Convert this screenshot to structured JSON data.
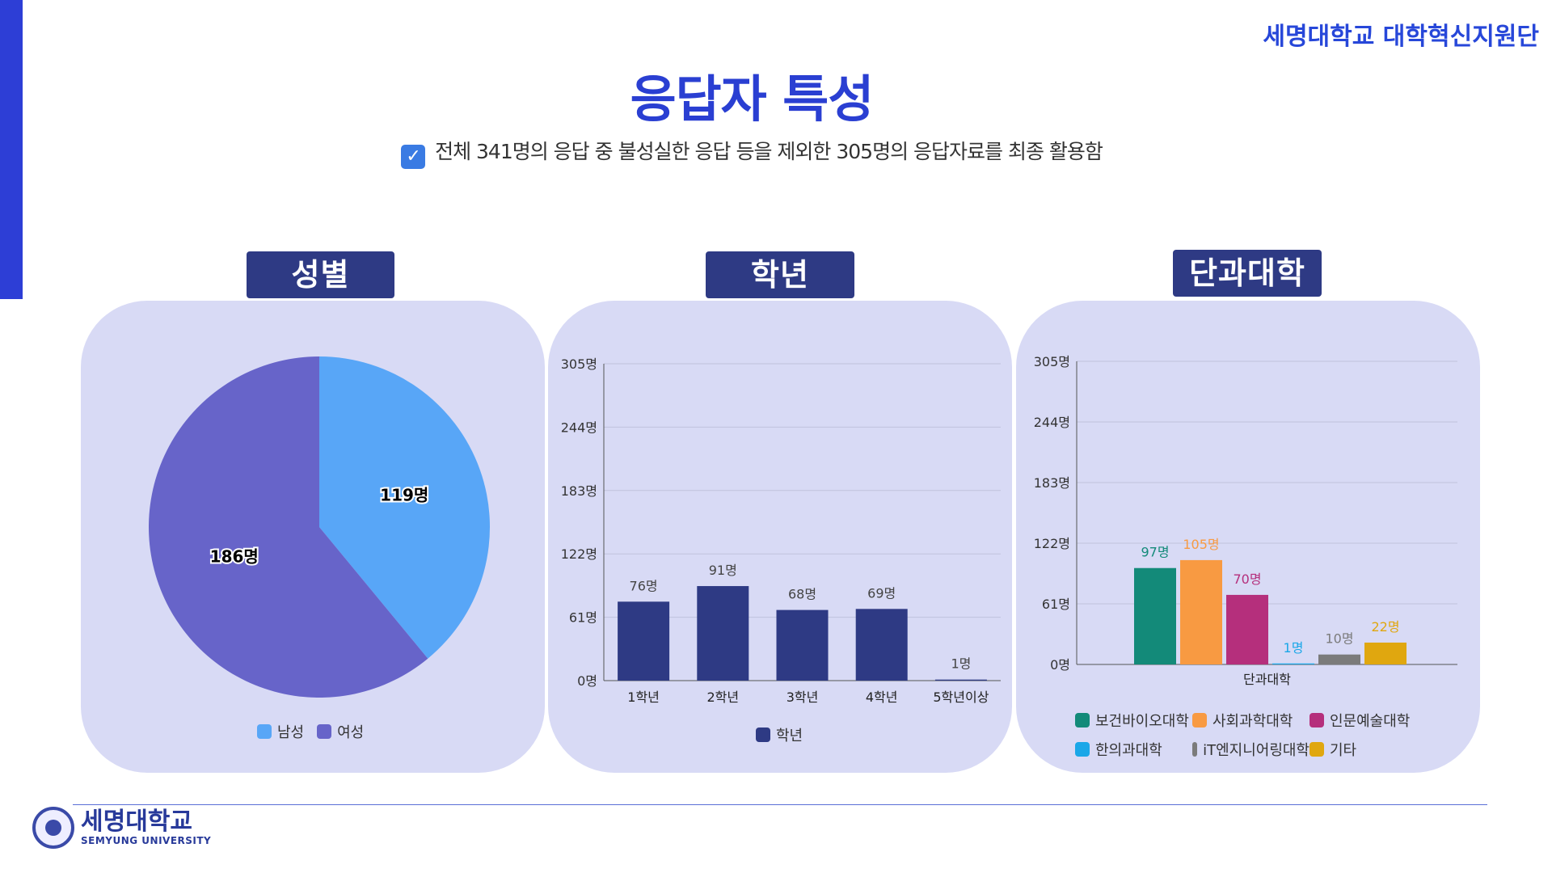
{
  "header": {
    "org_name": "세명대학교 대학혁신지원단",
    "title": "응답자 특성",
    "subtitle": "전체 341명의 응답 중 불성실한 응답 등을 제외한 305명의 응답자료를 최종 활용함",
    "check_icon": "check-box-icon"
  },
  "footer": {
    "logo_ko": "세명대학교",
    "logo_en": "SEMYUNG UNIVERSITY"
  },
  "panels": {
    "gender_label": "성별",
    "grade_label": "학년",
    "college_label": "단과대학"
  },
  "chart_data": [
    {
      "type": "pie",
      "title": "성별",
      "labels": [
        "남성",
        "여성"
      ],
      "values": [
        119,
        186
      ],
      "value_labels": [
        "119명",
        "186명"
      ],
      "colors": [
        "#58a6f7",
        "#6764c9"
      ],
      "legend": "bottom"
    },
    {
      "type": "bar",
      "title": "학년",
      "categories": [
        "1학년",
        "2학년",
        "3학년",
        "4학년",
        "5학년이상"
      ],
      "series": [
        {
          "name": "학년",
          "values": [
            76,
            91,
            68,
            69,
            1
          ],
          "color": "#2e3a84"
        }
      ],
      "value_labels": [
        "76명",
        "91명",
        "68명",
        "69명",
        "1명"
      ],
      "yticks": [
        "0명",
        "61명",
        "122명",
        "183명",
        "244명",
        "305명"
      ],
      "ylim": [
        0,
        305
      ],
      "grid": true,
      "legend": "bottom"
    },
    {
      "type": "bar",
      "title": "단과대학",
      "categories": [
        "단과대학"
      ],
      "series": [
        {
          "name": "보건바이오대학",
          "values": [
            97
          ],
          "color": "#138a79"
        },
        {
          "name": "사회과학대학",
          "values": [
            105
          ],
          "color": "#f89a42"
        },
        {
          "name": "인문예술대학",
          "values": [
            70
          ],
          "color": "#b52f7c"
        },
        {
          "name": "한의과대학",
          "values": [
            1
          ],
          "color": "#1aa7e8"
        },
        {
          "name": "iT엔지니어링대학",
          "values": [
            10
          ],
          "color": "#7b7b7b"
        },
        {
          "name": "기타",
          "values": [
            22
          ],
          "color": "#e0a70f"
        }
      ],
      "value_labels": [
        "97명",
        "105명",
        "70명",
        "1명",
        "10명",
        "22명"
      ],
      "yticks": [
        "0명",
        "61명",
        "122명",
        "183명",
        "244명",
        "305명"
      ],
      "ylim": [
        0,
        305
      ],
      "grid": true,
      "legend": "bottom"
    }
  ]
}
